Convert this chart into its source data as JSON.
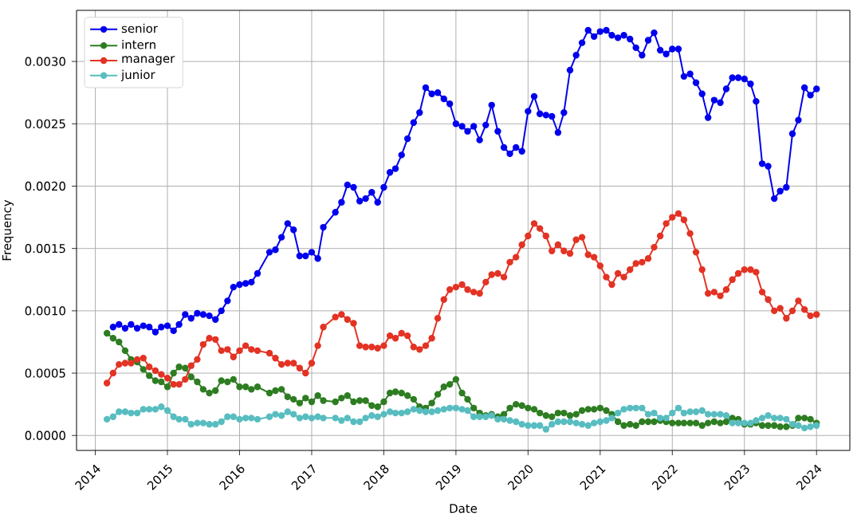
{
  "chart_data": {
    "type": "line",
    "xlabel": "Date",
    "ylabel": "Frequency",
    "x": [
      "2014-03",
      "2014-04",
      "2014-05",
      "2014-06",
      "2014-07",
      "2014-08",
      "2014-09",
      "2014-10",
      "2014-11",
      "2014-12",
      "2015-01",
      "2015-02",
      "2015-03",
      "2015-04",
      "2015-05",
      "2015-06",
      "2015-07",
      "2015-08",
      "2015-09",
      "2015-10",
      "2015-11",
      "2015-12",
      "2016-01",
      "2016-02",
      "2016-03",
      "2016-04",
      "2016-05",
      "2016-06",
      "2016-07",
      "2016-08",
      "2016-09",
      "2016-10",
      "2016-11",
      "2016-12",
      "2017-01",
      "2017-02",
      "2017-03",
      "2017-04",
      "2017-05",
      "2017-06",
      "2017-07",
      "2017-08",
      "2017-09",
      "2017-10",
      "2017-11",
      "2017-12",
      "2018-01",
      "2018-02",
      "2018-03",
      "2018-04",
      "2018-05",
      "2018-06",
      "2018-07",
      "2018-08",
      "2018-09",
      "2018-10",
      "2018-11",
      "2018-12",
      "2019-01",
      "2019-02",
      "2019-03",
      "2019-04",
      "2019-05",
      "2019-06",
      "2019-07",
      "2019-08",
      "2019-09",
      "2019-10",
      "2019-11",
      "2019-12",
      "2020-01",
      "2020-02",
      "2020-03",
      "2020-04",
      "2020-05",
      "2020-06",
      "2020-07",
      "2020-08",
      "2020-09",
      "2020-10",
      "2020-11",
      "2020-12",
      "2021-01",
      "2021-02",
      "2021-03",
      "2021-04",
      "2021-05",
      "2021-06",
      "2021-07",
      "2021-08",
      "2021-09",
      "2021-10",
      "2021-11",
      "2021-12",
      "2022-01",
      "2022-02",
      "2022-03",
      "2022-04",
      "2022-05",
      "2022-06",
      "2022-07",
      "2022-08",
      "2022-09",
      "2022-10",
      "2022-11",
      "2022-12",
      "2023-01",
      "2023-02",
      "2023-03",
      "2023-04",
      "2023-05",
      "2023-06",
      "2023-07",
      "2023-08",
      "2023-09",
      "2023-10",
      "2023-11",
      "2023-12",
      "2024-01"
    ],
    "series": [
      {
        "name": "senior",
        "color": "#0000ee",
        "values": [
          null,
          0.00087,
          0.00089,
          0.00086,
          0.00089,
          0.00086,
          0.00088,
          0.00087,
          0.00083,
          0.00087,
          0.00088,
          0.00084,
          0.00089,
          0.00097,
          0.00094,
          0.00098,
          0.00097,
          0.00096,
          0.00093,
          0.001,
          0.00108,
          0.00119,
          0.00121,
          0.00122,
          0.00123,
          0.0013,
          null,
          0.00147,
          0.00149,
          0.00159,
          0.0017,
          0.00165,
          0.00144,
          0.00144,
          0.00147,
          0.00142,
          0.00167,
          null,
          0.00179,
          0.00187,
          0.00201,
          0.00199,
          0.00188,
          0.0019,
          0.00195,
          0.00187,
          0.00199,
          0.00211,
          0.00214,
          0.00225,
          0.00238,
          0.00251,
          0.00259,
          0.00279,
          0.00274,
          0.00275,
          0.0027,
          0.00266,
          0.0025,
          0.00248,
          0.00244,
          0.00248,
          0.00237,
          0.00249,
          0.00265,
          0.00244,
          0.00231,
          0.00226,
          0.00231,
          0.00228,
          0.0026,
          0.00272,
          0.00258,
          0.00257,
          0.00256,
          0.00243,
          0.00259,
          0.00293,
          0.00305,
          0.00315,
          0.00325,
          0.0032,
          0.00324,
          0.00325,
          0.00321,
          0.00319,
          0.00321,
          0.00318,
          0.00311,
          0.00305,
          0.00317,
          0.00323,
          0.00309,
          0.00306,
          0.0031,
          0.0031,
          0.00288,
          0.0029,
          0.00283,
          0.00274,
          0.00255,
          0.00269,
          0.00267,
          0.00278,
          0.00287,
          0.00287,
          0.00286,
          0.00282,
          0.00268,
          0.00218,
          0.00216,
          0.0019,
          0.00196,
          0.00199,
          0.00242,
          0.00253,
          0.00279,
          0.00273,
          0.00278
        ]
      },
      {
        "name": "intern",
        "color": "#2e7d22",
        "values": [
          0.00082,
          0.00078,
          0.00075,
          0.00068,
          0.00061,
          0.00059,
          0.00053,
          0.00048,
          0.00044,
          0.00043,
          0.00039,
          0.0005,
          0.00055,
          0.00054,
          0.00047,
          0.00043,
          0.00037,
          0.00034,
          0.00036,
          0.00044,
          0.00043,
          0.00045,
          0.00039,
          0.00039,
          0.00037,
          0.00039,
          null,
          0.00034,
          0.00036,
          0.00037,
          0.00031,
          0.00029,
          0.00026,
          0.0003,
          0.00027,
          0.00032,
          0.00028,
          null,
          0.00027,
          0.0003,
          0.00032,
          0.00027,
          0.00028,
          0.00028,
          0.00024,
          0.00023,
          0.00027,
          0.00034,
          0.00035,
          0.00034,
          0.00032,
          0.00029,
          0.00023,
          0.00022,
          0.00026,
          0.00033,
          0.00039,
          0.00041,
          0.00045,
          0.00034,
          0.00029,
          0.00022,
          0.00018,
          0.00016,
          0.00017,
          0.00015,
          0.00017,
          0.00022,
          0.00025,
          0.00024,
          0.00022,
          0.00021,
          0.00018,
          0.00016,
          0.00015,
          0.00018,
          0.00018,
          0.00016,
          0.00017,
          0.0002,
          0.00021,
          0.00021,
          0.00022,
          0.0002,
          0.00017,
          0.00011,
          8e-05,
          9e-05,
          8e-05,
          0.00011,
          0.00011,
          0.00011,
          0.00012,
          0.00011,
          0.0001,
          0.0001,
          0.0001,
          0.0001,
          0.0001,
          8e-05,
          0.0001,
          0.00011,
          0.0001,
          0.00011,
          0.00014,
          0.00013,
          9e-05,
          9e-05,
          0.0001,
          8e-05,
          8e-05,
          8e-05,
          7e-05,
          7e-05,
          8e-05,
          0.00014,
          0.00014,
          0.00013,
          0.0001
        ]
      },
      {
        "name": "manager",
        "color": "#e33324",
        "values": [
          0.00042,
          0.0005,
          0.00057,
          0.00058,
          0.00058,
          0.00061,
          0.00062,
          0.00055,
          0.00052,
          0.00049,
          0.00046,
          0.00041,
          0.00041,
          0.00045,
          0.00056,
          0.00061,
          0.00073,
          0.00078,
          0.00077,
          0.00068,
          0.00069,
          0.00063,
          0.00068,
          0.00072,
          0.00069,
          0.00068,
          null,
          0.00066,
          0.00062,
          0.00057,
          0.00058,
          0.00058,
          0.00054,
          0.0005,
          0.00058,
          0.00072,
          0.00087,
          null,
          0.00095,
          0.00097,
          0.00093,
          0.0009,
          0.00072,
          0.00071,
          0.00071,
          0.0007,
          0.00072,
          0.0008,
          0.00078,
          0.00082,
          0.0008,
          0.00071,
          0.00069,
          0.00072,
          0.00078,
          0.00094,
          0.00109,
          0.00117,
          0.00119,
          0.00121,
          0.00117,
          0.00115,
          0.00114,
          0.00123,
          0.00129,
          0.0013,
          0.00127,
          0.00139,
          0.00143,
          0.00153,
          0.0016,
          0.0017,
          0.00166,
          0.0016,
          0.00148,
          0.00153,
          0.00148,
          0.00146,
          0.00157,
          0.00159,
          0.00145,
          0.00143,
          0.00136,
          0.00127,
          0.00121,
          0.0013,
          0.00127,
          0.00133,
          0.00138,
          0.00139,
          0.00142,
          0.00151,
          0.0016,
          0.0017,
          0.00175,
          0.00178,
          0.00173,
          0.00162,
          0.00147,
          0.00133,
          0.00114,
          0.00115,
          0.00112,
          0.00117,
          0.00125,
          0.0013,
          0.00133,
          0.00133,
          0.00131,
          0.00115,
          0.00109,
          0.001,
          0.00102,
          0.00094,
          0.001,
          0.00108,
          0.00101,
          0.00096,
          0.00097
        ]
      },
      {
        "name": "junior",
        "color": "#58bdc0",
        "values": [
          0.00013,
          0.00015,
          0.00019,
          0.00019,
          0.00018,
          0.00018,
          0.00021,
          0.00021,
          0.00021,
          0.00023,
          0.0002,
          0.00015,
          0.00013,
          0.00013,
          9e-05,
          0.0001,
          0.0001,
          9e-05,
          9e-05,
          0.00011,
          0.00015,
          0.00015,
          0.00013,
          0.00014,
          0.00014,
          0.00013,
          null,
          0.00015,
          0.00017,
          0.00016,
          0.00019,
          0.00017,
          0.00014,
          0.00015,
          0.00014,
          0.00015,
          0.00014,
          null,
          0.00014,
          0.00012,
          0.00014,
          0.00011,
          0.00011,
          0.00014,
          0.00016,
          0.00015,
          0.00017,
          0.00019,
          0.00018,
          0.00018,
          0.00019,
          0.00021,
          0.0002,
          0.00019,
          0.00019,
          0.0002,
          0.00021,
          0.00022,
          0.00022,
          0.00021,
          0.0002,
          0.00015,
          0.00015,
          0.00015,
          0.00016,
          0.00013,
          0.00013,
          0.00012,
          0.00011,
          9e-05,
          8e-05,
          8e-05,
          8e-05,
          5e-05,
          9e-05,
          0.00011,
          0.00011,
          0.00011,
          0.0001,
          9e-05,
          8e-05,
          0.0001,
          0.00011,
          0.00012,
          0.00014,
          0.00018,
          0.00021,
          0.00022,
          0.00022,
          0.00022,
          0.00017,
          0.00018,
          0.00014,
          0.00014,
          0.00018,
          0.00022,
          0.00018,
          0.00019,
          0.00019,
          0.0002,
          0.00017,
          0.00017,
          0.00017,
          0.00016,
          0.0001,
          0.0001,
          0.0001,
          0.0001,
          0.00012,
          0.00014,
          0.00016,
          0.00014,
          0.00014,
          0.00013,
          9e-05,
          8e-05,
          6e-05,
          7e-05,
          8e-05
        ]
      }
    ],
    "xlim": [
      "2013-09-28",
      "2024-06-18"
    ],
    "xticks": [
      "2014",
      "2015",
      "2016",
      "2017",
      "2018",
      "2019",
      "2020",
      "2021",
      "2022",
      "2023",
      "2024"
    ],
    "ylim": [
      -0.00012,
      0.00341
    ],
    "yticks": [
      {
        "value": 0,
        "label": "0.0000"
      },
      {
        "value": 0.0005,
        "label": "0.0005"
      },
      {
        "value": 0.001,
        "label": "0.0010"
      },
      {
        "value": 0.0015,
        "label": "0.0015"
      },
      {
        "value": 0.002,
        "label": "0.0020"
      },
      {
        "value": 0.0025,
        "label": "0.0025"
      },
      {
        "value": 0.003,
        "label": "0.0030"
      }
    ],
    "grid": true,
    "legend": "top left",
    "marker": "circle",
    "line_style": "solid"
  }
}
